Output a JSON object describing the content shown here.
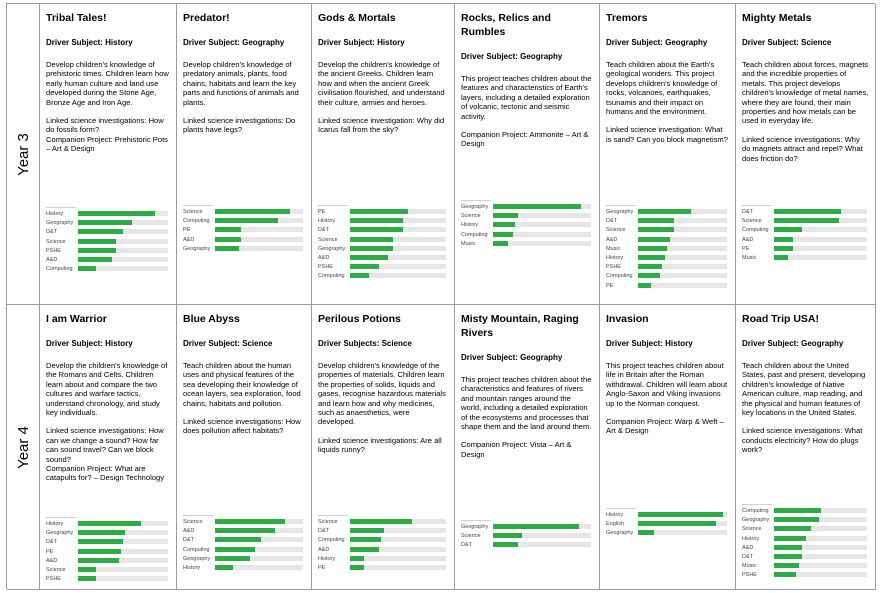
{
  "colors": {
    "bar": "#2eab46",
    "track": "#e6e6e6",
    "border": "#9a9a9a"
  },
  "years": [
    {
      "label": "Year 3",
      "projects": [
        {
          "title": "Tribal Tales!",
          "driver": "Driver Subject: History",
          "description": "Develop children's knowledge of prehistoric times. Children learn how early human culture and land use developed during the Stone Age, Bronze Age and Iron Age.",
          "linked": "Linked science investigations: How do fossils form?",
          "companion": "Companion Project: Prehistoric Pots – Art & Design",
          "chart_top": 206,
          "subjects": [
            {
              "name": "History",
              "value": 0.85
            },
            {
              "name": "Geography",
              "value": 0.6
            },
            {
              "name": "D&T",
              "value": 0.5
            },
            {
              "name": "Science",
              "value": 0.42
            },
            {
              "name": "PSHE",
              "value": 0.42
            },
            {
              "name": "A&D",
              "value": 0.38
            },
            {
              "name": "Computing",
              "value": 0.2
            }
          ]
        },
        {
          "title": "Predator!",
          "driver": "Driver Subject: Geography",
          "description": "Develop children's knowledge of predatory animals, plants, food chains, habitats and learn the key parts and functions of animals and plants.",
          "linked": "Linked science investigations: Do plants have legs?",
          "companion": "",
          "chart_top": 204,
          "subjects": [
            {
              "name": "Science",
              "value": 0.85
            },
            {
              "name": "Computing",
              "value": 0.72
            },
            {
              "name": "PE",
              "value": 0.3
            },
            {
              "name": "A&D",
              "value": 0.3
            },
            {
              "name": "Geography",
              "value": 0.27
            }
          ]
        },
        {
          "title": "Gods & Mortals",
          "driver": "Driver Subject: History",
          "description": "Develop the children's knowledge of the ancient Greeks. Children learn how and when the ancient Greek civilisation flourished, and understand their culture, armies and heroes.",
          "linked": "Linked science investigation: Why did Icarus fall from the sky?",
          "companion": "",
          "chart_top": 204,
          "subjects": [
            {
              "name": "PE",
              "value": 0.6
            },
            {
              "name": "History",
              "value": 0.55
            },
            {
              "name": "D&T",
              "value": 0.55
            },
            {
              "name": "Science",
              "value": 0.45
            },
            {
              "name": "Geography",
              "value": 0.45
            },
            {
              "name": "A&D",
              "value": 0.4
            },
            {
              "name": "PSHE",
              "value": 0.3
            },
            {
              "name": "Computing",
              "value": 0.2
            }
          ]
        },
        {
          "title": "Rocks, Relics and Rumbles",
          "driver": "Driver Subject: Geography",
          "description": "This project teaches children about the features and characteristics of Earth's layers, including a detailed exploration of volcanic, tectonic and seismic activity.",
          "linked": "",
          "companion": "Companion Project: Ammonite – Art & Design",
          "chart_top": 199,
          "subjects": [
            {
              "name": "Geography",
              "value": 0.9
            },
            {
              "name": "Science",
              "value": 0.25
            },
            {
              "name": "History",
              "value": 0.22
            },
            {
              "name": "Computing",
              "value": 0.2
            },
            {
              "name": "Music",
              "value": 0.15
            }
          ]
        },
        {
          "title": "Tremors",
          "driver": "Driver Subject: Geography",
          "description": "Teach children about the Earth's geological wonders. This project develops children's knowledge of rocks, volcanoes, earthquakes, tsunamis and their impact on humans and the environment.",
          "linked": "Linked science investigation: What is sand? Can you block magnetism?",
          "companion": "",
          "chart_top": 204,
          "subjects": [
            {
              "name": "Geography",
              "value": 0.6
            },
            {
              "name": "D&T",
              "value": 0.4
            },
            {
              "name": "Science",
              "value": 0.4
            },
            {
              "name": "A&D",
              "value": 0.36
            },
            {
              "name": "Music",
              "value": 0.33
            },
            {
              "name": "History",
              "value": 0.3
            },
            {
              "name": "PSHE",
              "value": 0.27
            },
            {
              "name": "Computing",
              "value": 0.25
            },
            {
              "name": "PE",
              "value": 0.15
            }
          ]
        },
        {
          "title": "Mighty Metals",
          "driver": "Driver Subject: Science",
          "description": "Teach children about forces, magnets and the incredible properties of metals. This project develops children's knowledge of metal names, where they are found, their main properties and how metals can be used in everyday life.",
          "linked": "Linked science investigations: Why do magnets attract and repel? What does friction do?",
          "companion": "",
          "chart_top": 204,
          "subjects": [
            {
              "name": "D&T",
              "value": 0.72
            },
            {
              "name": "Science",
              "value": 0.7
            },
            {
              "name": "Computing",
              "value": 0.3
            },
            {
              "name": "A&D",
              "value": 0.2
            },
            {
              "name": "PE",
              "value": 0.2
            },
            {
              "name": "Music",
              "value": 0.15
            }
          ]
        }
      ]
    },
    {
      "label": "Year 4",
      "projects": [
        {
          "title": "I am Warrior",
          "driver": "Driver Subject: History",
          "description": "Develop the children's knowledge of the Romans and Celts. Children learn about and compare the two cultures and warfare tactics, understand chronology, and study key individuals.",
          "linked": "Linked science investigations: How can we change a sound? How far can sound travel? Can we block sound?",
          "companion": "Companion Project: What are catapults for? – Design Technology",
          "chart_top": 215,
          "subjects": [
            {
              "name": "History",
              "value": 0.7
            },
            {
              "name": "Geography",
              "value": 0.52
            },
            {
              "name": "D&T",
              "value": 0.5
            },
            {
              "name": "PE",
              "value": 0.48
            },
            {
              "name": "A&D",
              "value": 0.46
            },
            {
              "name": "Science",
              "value": 0.2
            },
            {
              "name": "PSHE",
              "value": 0.2
            }
          ]
        },
        {
          "title": "Blue Abyss",
          "driver": "Driver Subject: Science",
          "description": "Teach children about the human uses and physical features of the sea developing their knowledge of ocean layers, sea exploration, food chains, habitats and pollution.",
          "linked": "Linked science investigations: How does pollution affect habitats?",
          "companion": "",
          "chart_top": 213,
          "subjects": [
            {
              "name": "Science",
              "value": 0.8
            },
            {
              "name": "A&D",
              "value": 0.68
            },
            {
              "name": "D&T",
              "value": 0.52
            },
            {
              "name": "Computing",
              "value": 0.46
            },
            {
              "name": "Geography",
              "value": 0.4
            },
            {
              "name": "History",
              "value": 0.2
            }
          ]
        },
        {
          "title": "Perilous Potions",
          "driver": "Driver Subjects: Science",
          "description": "Develop children's knowledge of the properties of materials. Children learn the properties of solids, liquids and gases, recognise hazardous materials and learn how and why medicines, such as anaesthetics, were developed.",
          "linked": "Linked science investigations: Are all liquids runny?",
          "companion": "",
          "chart_top": 213,
          "subjects": [
            {
              "name": "Science",
              "value": 0.65
            },
            {
              "name": "D&T",
              "value": 0.35
            },
            {
              "name": "Computing",
              "value": 0.32
            },
            {
              "name": "A&D",
              "value": 0.3
            },
            {
              "name": "History",
              "value": 0.15
            },
            {
              "name": "PE",
              "value": 0.15
            }
          ]
        },
        {
          "title": "Misty Mountain, Raging Rivers",
          "driver": "Driver Subject: Geography",
          "description": "This project teaches children about the characteristics and features of rivers and mountain ranges around the world, including a detailed exploration of the ecosystems and processes that shape them and the land around them.",
          "linked": "",
          "companion": "Companion Project: Vista – Art & Design",
          "chart_top": 218,
          "subjects": [
            {
              "name": "Geography",
              "value": 0.88
            },
            {
              "name": "Science",
              "value": 0.3
            },
            {
              "name": "D&T",
              "value": 0.25
            }
          ]
        },
        {
          "title": "Invasion",
          "driver": "Driver Subject: History",
          "description": "This project teaches children about life in Britain after the Roman withdrawal. Children will learn about Anglo-Saxon and Viking invasions up to the Norman conquest.",
          "linked": "",
          "companion": "Companion Project: Warp & Weft – Art & Design",
          "chart_top": 206,
          "subjects": [
            {
              "name": "History",
              "value": 0.95
            },
            {
              "name": "English",
              "value": 0.88
            },
            {
              "name": "Geography",
              "value": 0.18
            }
          ]
        },
        {
          "title": "Road Trip USA!",
          "driver": "Driver Subject: Geography",
          "description": "Teach children about the United States, past and present, developing children's knowledge of Native American culture, map reading, and the physical and human features of key locations in the United States.",
          "linked": "Linked science investigations: What conducts electricity? How do plugs work?",
          "companion": "",
          "chart_top": 202,
          "subjects": [
            {
              "name": "Computing",
              "value": 0.5
            },
            {
              "name": "Geography",
              "value": 0.48
            },
            {
              "name": "Science",
              "value": 0.4
            },
            {
              "name": "History",
              "value": 0.34
            },
            {
              "name": "A&D",
              "value": 0.3
            },
            {
              "name": "D&T",
              "value": 0.3
            },
            {
              "name": "Music",
              "value": 0.27
            },
            {
              "name": "PSHE",
              "value": 0.24
            }
          ]
        }
      ]
    }
  ]
}
